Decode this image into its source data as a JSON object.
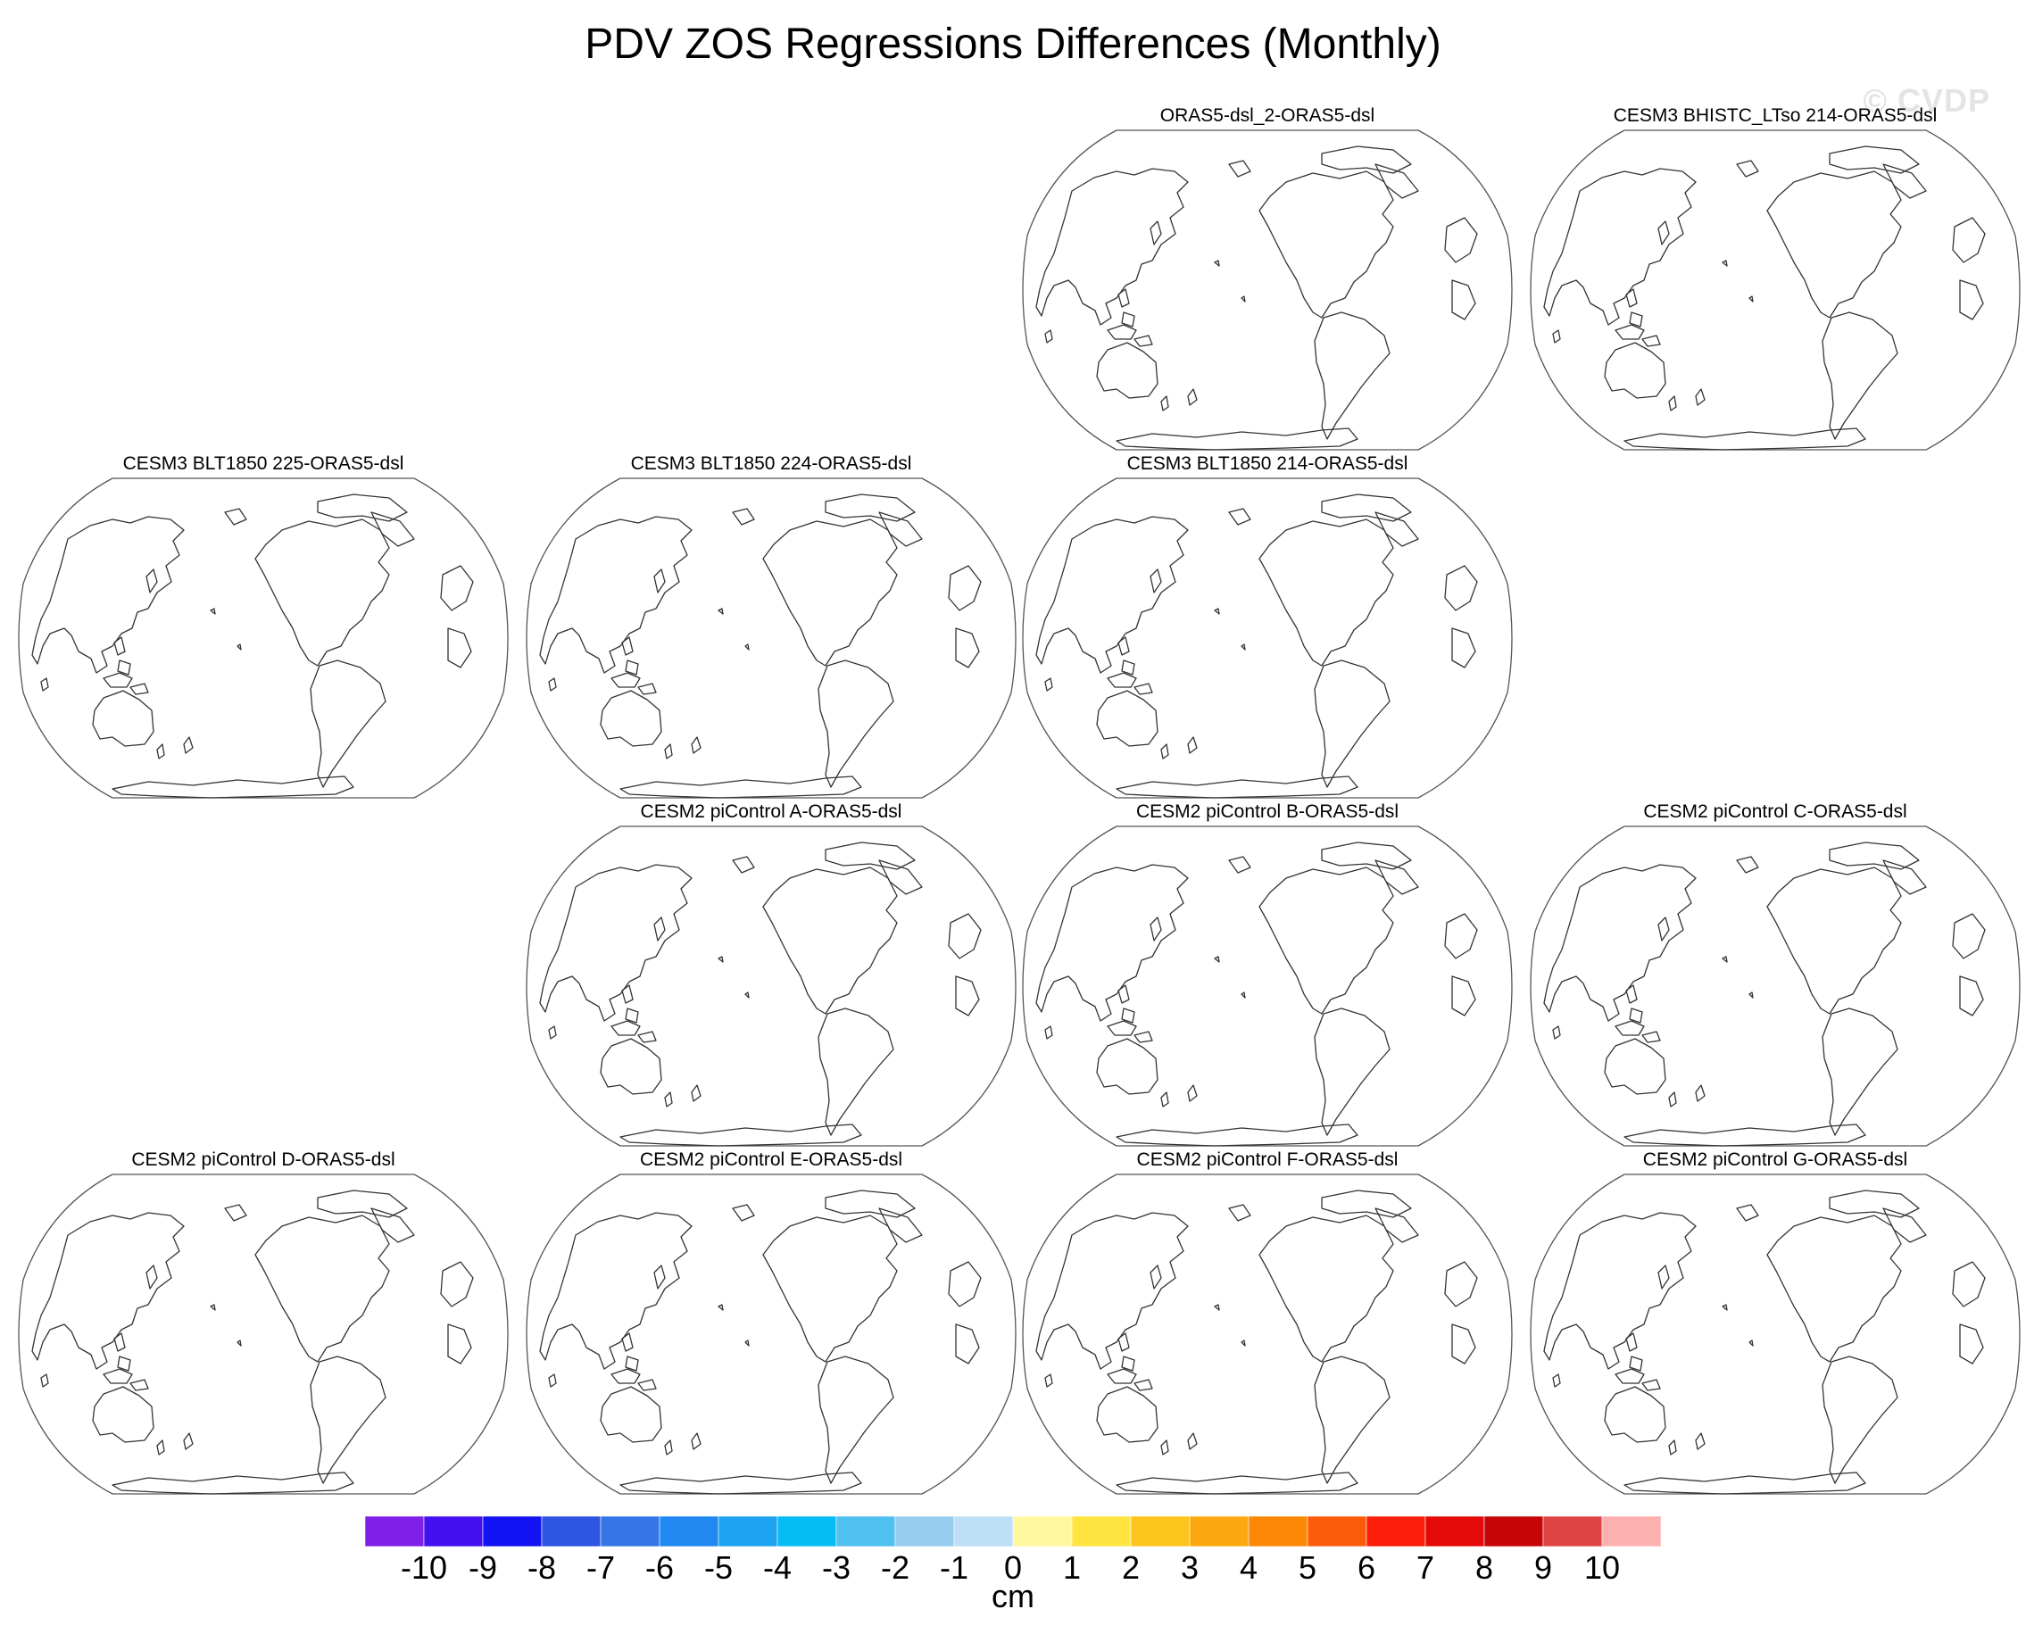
{
  "title": "PDV ZOS Regressions Differences (Monthly)",
  "watermark": "© CVDP",
  "panels": [
    {
      "label": "ORAS5-dsl_2-ORAS5-dsl"
    },
    {
      "label": "CESM3 BHISTC_LTso 214-ORAS5-dsl"
    },
    {
      "label": "CESM3 BLT1850 225-ORAS5-dsl"
    },
    {
      "label": "CESM3 BLT1850 224-ORAS5-dsl"
    },
    {
      "label": "CESM3 BLT1850 214-ORAS5-dsl"
    },
    {
      "label": "CESM2 piControl A-ORAS5-dsl"
    },
    {
      "label": "CESM2 piControl B-ORAS5-dsl"
    },
    {
      "label": "CESM2 piControl C-ORAS5-dsl"
    },
    {
      "label": "CESM2 piControl D-ORAS5-dsl"
    },
    {
      "label": "CESM2 piControl E-ORAS5-dsl"
    },
    {
      "label": "CESM2 piControl F-ORAS5-dsl"
    },
    {
      "label": "CESM2 piControl G-ORAS5-dsl"
    }
  ],
  "colorbar": {
    "units": "cm",
    "ticks": [
      "-10",
      "-9",
      "-8",
      "-7",
      "-6",
      "-5",
      "-4",
      "-3",
      "-2",
      "-1",
      "0",
      "1",
      "2",
      "3",
      "4",
      "5",
      "6",
      "7",
      "8",
      "9",
      "10"
    ],
    "colors": [
      "#7f1fe8",
      "#4311f0",
      "#1212f2",
      "#2e55e0",
      "#3476e6",
      "#2088f0",
      "#1ca2f0",
      "#06bcf4",
      "#50c0f0",
      "#96ccee",
      "#bde0f6",
      "#fff8a0",
      "#ffe440",
      "#fcc41c",
      "#fca810",
      "#fc8806",
      "#fc5c0a",
      "#fc1e0a",
      "#e40a0a",
      "#c60606",
      "#dd4444",
      "#fcb0b0"
    ]
  }
}
